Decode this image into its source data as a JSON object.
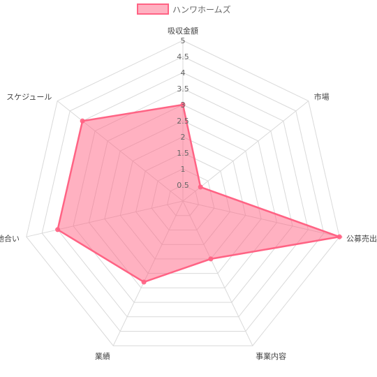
{
  "chart_data": {
    "type": "radar",
    "categories": [
      "吸収金額",
      "市場",
      "公募売出比",
      "事業内容",
      "業績",
      "地合い",
      "スケジュール"
    ],
    "series": [
      {
        "name": "ハンワホームズ",
        "values": [
          3,
          0.7,
          5,
          2,
          2.8,
          4,
          4
        ],
        "fill": "#ff6384",
        "stroke": "#ff6384"
      }
    ],
    "r_range": [
      0,
      5
    ],
    "ticks": [
      "0.5",
      "1",
      "1.5",
      "2",
      "2.5",
      "3",
      "3.5",
      "4",
      "4.5",
      "5"
    ],
    "grid": true,
    "legend_position": "top"
  }
}
